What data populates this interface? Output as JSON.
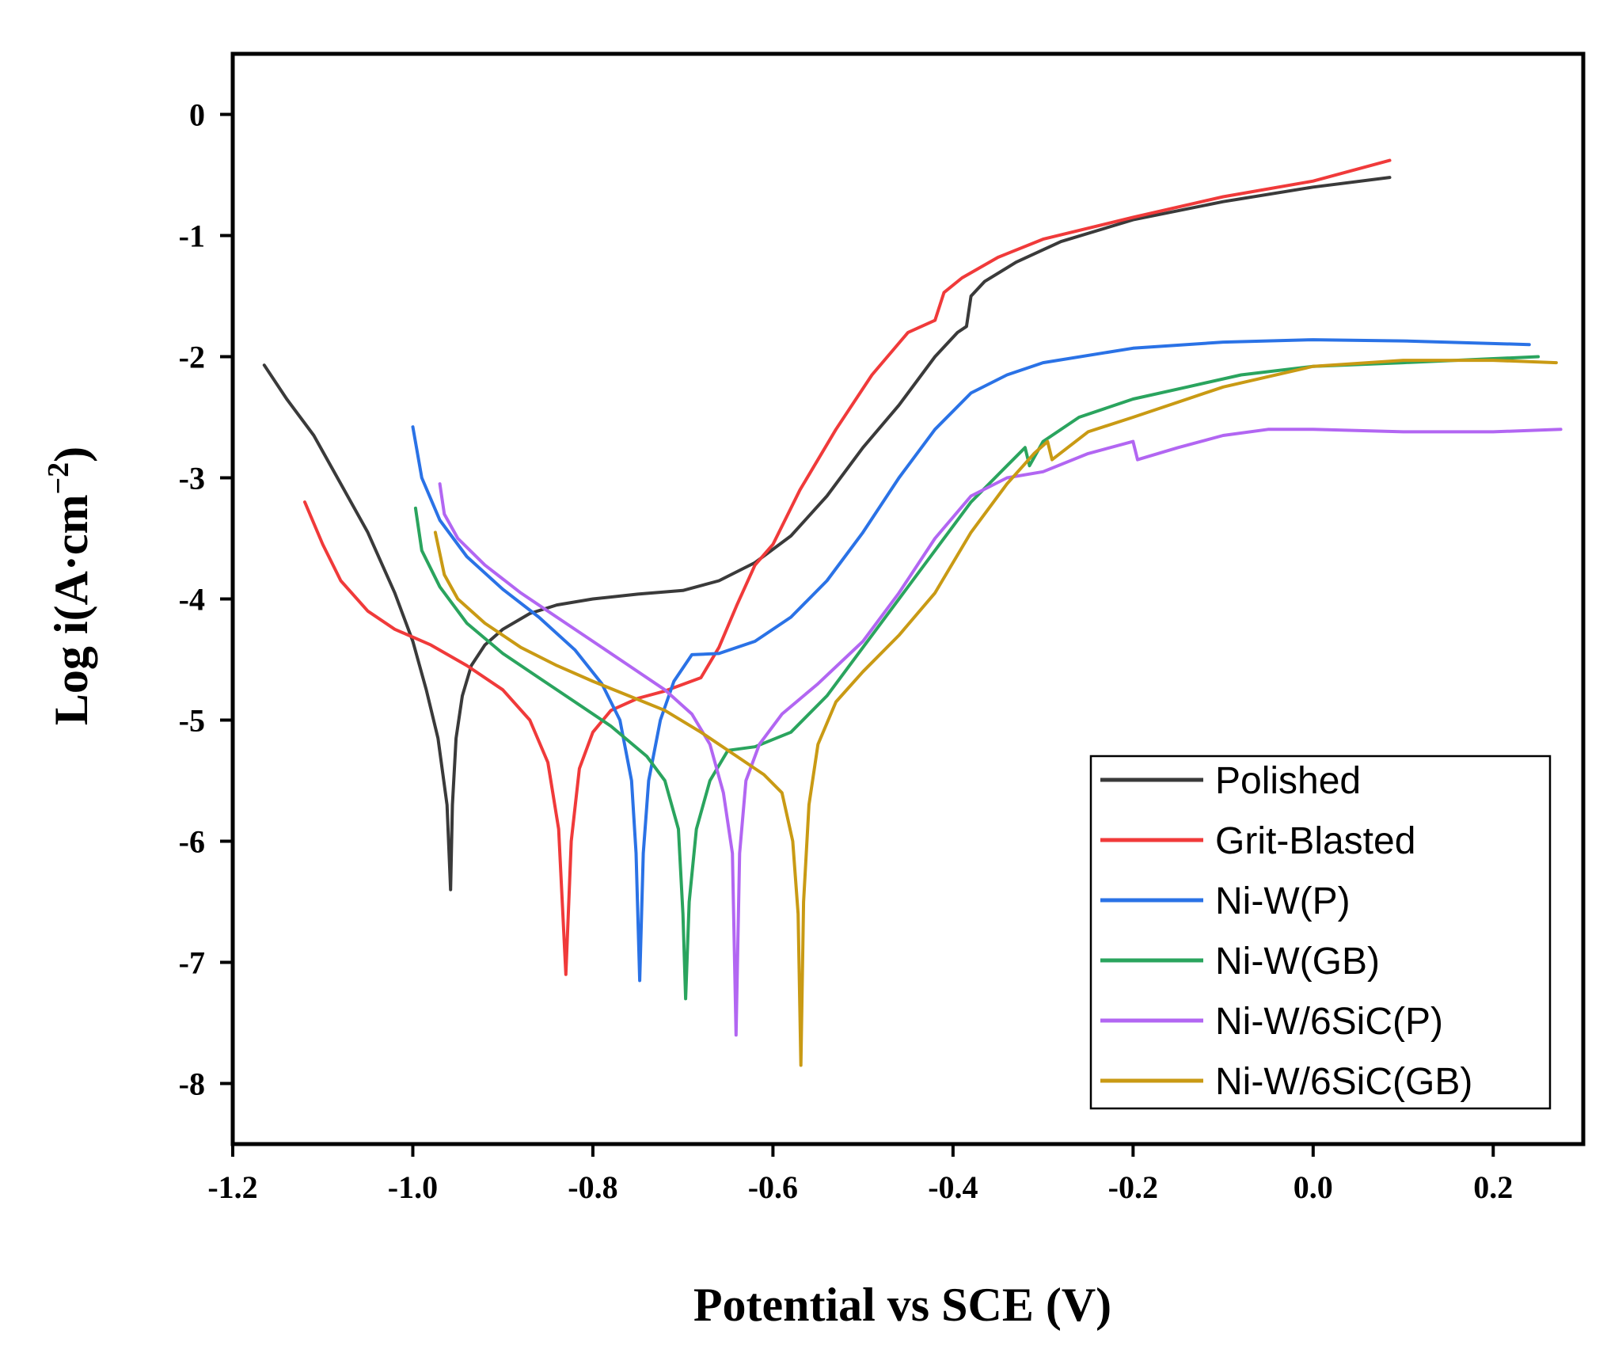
{
  "chart_data": {
    "type": "line",
    "title": "",
    "xlabel": "Potential vs SCE (V)",
    "ylabel_main": "Log i(A·cm",
    "ylabel_sup": "−2",
    "ylabel_close": ")",
    "xlim": [
      -1.2,
      0.3
    ],
    "ylim": [
      -8.5,
      0.5
    ],
    "xticks": [
      -1.2,
      -1.0,
      -0.8,
      -0.6,
      -0.4,
      -0.2,
      0.0,
      0.2
    ],
    "xtick_labels": [
      "-1.2",
      "-1.0",
      "-0.8",
      "-0.6",
      "-0.4",
      "-0.2",
      "0.0",
      "0.2"
    ],
    "yticks": [
      0,
      -1,
      -2,
      -3,
      -4,
      -5,
      -6,
      -7,
      -8
    ],
    "ytick_labels": [
      "0",
      "-1",
      "-2",
      "-3",
      "-4",
      "-5",
      "-6",
      "-7",
      "-8"
    ],
    "legend_position": "bottom-right",
    "series": [
      {
        "name": "Polished",
        "color": "#3a3a3a",
        "points": [
          [
            -1.165,
            -2.07
          ],
          [
            -1.14,
            -2.35
          ],
          [
            -1.11,
            -2.65
          ],
          [
            -1.08,
            -3.05
          ],
          [
            -1.05,
            -3.45
          ],
          [
            -1.02,
            -3.95
          ],
          [
            -1.0,
            -4.35
          ],
          [
            -0.985,
            -4.75
          ],
          [
            -0.972,
            -5.15
          ],
          [
            -0.962,
            -5.7
          ],
          [
            -0.958,
            -6.4
          ],
          [
            -0.956,
            -5.7
          ],
          [
            -0.952,
            -5.15
          ],
          [
            -0.945,
            -4.8
          ],
          [
            -0.935,
            -4.55
          ],
          [
            -0.92,
            -4.38
          ],
          [
            -0.9,
            -4.25
          ],
          [
            -0.87,
            -4.12
          ],
          [
            -0.84,
            -4.05
          ],
          [
            -0.8,
            -4.0
          ],
          [
            -0.75,
            -3.96
          ],
          [
            -0.7,
            -3.93
          ],
          [
            -0.66,
            -3.85
          ],
          [
            -0.62,
            -3.7
          ],
          [
            -0.58,
            -3.48
          ],
          [
            -0.54,
            -3.15
          ],
          [
            -0.5,
            -2.75
          ],
          [
            -0.46,
            -2.4
          ],
          [
            -0.42,
            -2.0
          ],
          [
            -0.395,
            -1.8
          ],
          [
            -0.385,
            -1.75
          ],
          [
            -0.38,
            -1.5
          ],
          [
            -0.365,
            -1.38
          ],
          [
            -0.33,
            -1.22
          ],
          [
            -0.28,
            -1.05
          ],
          [
            -0.2,
            -0.87
          ],
          [
            -0.1,
            -0.72
          ],
          [
            0.0,
            -0.6
          ],
          [
            0.085,
            -0.52
          ]
        ]
      },
      {
        "name": "Grit-Blasted",
        "color": "#f03a3a",
        "points": [
          [
            -1.12,
            -3.2
          ],
          [
            -1.1,
            -3.55
          ],
          [
            -1.08,
            -3.85
          ],
          [
            -1.05,
            -4.1
          ],
          [
            -1.02,
            -4.25
          ],
          [
            -0.98,
            -4.38
          ],
          [
            -0.94,
            -4.55
          ],
          [
            -0.9,
            -4.75
          ],
          [
            -0.87,
            -5.0
          ],
          [
            -0.85,
            -5.35
          ],
          [
            -0.838,
            -5.9
          ],
          [
            -0.83,
            -7.1
          ],
          [
            -0.824,
            -6.0
          ],
          [
            -0.815,
            -5.4
          ],
          [
            -0.8,
            -5.1
          ],
          [
            -0.78,
            -4.92
          ],
          [
            -0.75,
            -4.82
          ],
          [
            -0.72,
            -4.76
          ],
          [
            -0.68,
            -4.65
          ],
          [
            -0.66,
            -4.4
          ],
          [
            -0.64,
            -4.05
          ],
          [
            -0.62,
            -3.72
          ],
          [
            -0.6,
            -3.55
          ],
          [
            -0.57,
            -3.1
          ],
          [
            -0.53,
            -2.6
          ],
          [
            -0.49,
            -2.15
          ],
          [
            -0.45,
            -1.8
          ],
          [
            -0.42,
            -1.7
          ],
          [
            -0.41,
            -1.47
          ],
          [
            -0.39,
            -1.35
          ],
          [
            -0.35,
            -1.18
          ],
          [
            -0.3,
            -1.03
          ],
          [
            -0.2,
            -0.85
          ],
          [
            -0.1,
            -0.68
          ],
          [
            0.0,
            -0.55
          ],
          [
            0.05,
            -0.45
          ],
          [
            0.085,
            -0.38
          ]
        ]
      },
      {
        "name": "Ni-W(P)",
        "color": "#2a72e6",
        "points": [
          [
            -1.0,
            -2.58
          ],
          [
            -0.99,
            -3.0
          ],
          [
            -0.97,
            -3.35
          ],
          [
            -0.94,
            -3.65
          ],
          [
            -0.9,
            -3.92
          ],
          [
            -0.86,
            -4.15
          ],
          [
            -0.82,
            -4.42
          ],
          [
            -0.79,
            -4.7
          ],
          [
            -0.77,
            -5.0
          ],
          [
            -0.757,
            -5.5
          ],
          [
            -0.752,
            -6.1
          ],
          [
            -0.748,
            -7.15
          ],
          [
            -0.744,
            -6.1
          ],
          [
            -0.738,
            -5.5
          ],
          [
            -0.725,
            -5.0
          ],
          [
            -0.71,
            -4.68
          ],
          [
            -0.69,
            -4.46
          ],
          [
            -0.66,
            -4.45
          ],
          [
            -0.62,
            -4.35
          ],
          [
            -0.58,
            -4.15
          ],
          [
            -0.54,
            -3.85
          ],
          [
            -0.5,
            -3.45
          ],
          [
            -0.46,
            -3.0
          ],
          [
            -0.42,
            -2.6
          ],
          [
            -0.38,
            -2.3
          ],
          [
            -0.34,
            -2.15
          ],
          [
            -0.3,
            -2.05
          ],
          [
            -0.2,
            -1.93
          ],
          [
            -0.1,
            -1.88
          ],
          [
            0.0,
            -1.86
          ],
          [
            0.1,
            -1.87
          ],
          [
            0.24,
            -1.9
          ]
        ]
      },
      {
        "name": "Ni-W(GB)",
        "color": "#2aa45e",
        "points": [
          [
            -0.997,
            -3.25
          ],
          [
            -0.99,
            -3.6
          ],
          [
            -0.97,
            -3.9
          ],
          [
            -0.94,
            -4.2
          ],
          [
            -0.9,
            -4.45
          ],
          [
            -0.86,
            -4.65
          ],
          [
            -0.82,
            -4.85
          ],
          [
            -0.78,
            -5.05
          ],
          [
            -0.74,
            -5.3
          ],
          [
            -0.72,
            -5.5
          ],
          [
            -0.705,
            -5.9
          ],
          [
            -0.7,
            -6.6
          ],
          [
            -0.697,
            -7.3
          ],
          [
            -0.693,
            -6.5
          ],
          [
            -0.685,
            -5.9
          ],
          [
            -0.67,
            -5.5
          ],
          [
            -0.65,
            -5.25
          ],
          [
            -0.62,
            -5.22
          ],
          [
            -0.58,
            -5.1
          ],
          [
            -0.54,
            -4.8
          ],
          [
            -0.5,
            -4.4
          ],
          [
            -0.46,
            -4.0
          ],
          [
            -0.42,
            -3.6
          ],
          [
            -0.38,
            -3.2
          ],
          [
            -0.34,
            -2.9
          ],
          [
            -0.32,
            -2.75
          ],
          [
            -0.315,
            -2.9
          ],
          [
            -0.3,
            -2.7
          ],
          [
            -0.26,
            -2.5
          ],
          [
            -0.2,
            -2.35
          ],
          [
            -0.14,
            -2.25
          ],
          [
            -0.08,
            -2.15
          ],
          [
            0.0,
            -2.08
          ],
          [
            0.1,
            -2.05
          ],
          [
            0.25,
            -2.0
          ]
        ]
      },
      {
        "name": "Ni-W/6SiC(P)",
        "color": "#b266f2",
        "points": [
          [
            -0.97,
            -3.05
          ],
          [
            -0.965,
            -3.3
          ],
          [
            -0.95,
            -3.5
          ],
          [
            -0.92,
            -3.72
          ],
          [
            -0.88,
            -3.95
          ],
          [
            -0.84,
            -4.15
          ],
          [
            -0.8,
            -4.35
          ],
          [
            -0.76,
            -4.55
          ],
          [
            -0.72,
            -4.75
          ],
          [
            -0.69,
            -4.95
          ],
          [
            -0.67,
            -5.2
          ],
          [
            -0.655,
            -5.6
          ],
          [
            -0.645,
            -6.1
          ],
          [
            -0.641,
            -7.6
          ],
          [
            -0.637,
            -6.1
          ],
          [
            -0.63,
            -5.5
          ],
          [
            -0.615,
            -5.2
          ],
          [
            -0.59,
            -4.95
          ],
          [
            -0.55,
            -4.7
          ],
          [
            -0.5,
            -4.35
          ],
          [
            -0.46,
            -3.95
          ],
          [
            -0.42,
            -3.5
          ],
          [
            -0.38,
            -3.15
          ],
          [
            -0.34,
            -3.0
          ],
          [
            -0.3,
            -2.95
          ],
          [
            -0.25,
            -2.8
          ],
          [
            -0.2,
            -2.7
          ],
          [
            -0.195,
            -2.85
          ],
          [
            -0.15,
            -2.75
          ],
          [
            -0.1,
            -2.65
          ],
          [
            -0.05,
            -2.6
          ],
          [
            0.0,
            -2.6
          ],
          [
            0.1,
            -2.62
          ],
          [
            0.2,
            -2.62
          ],
          [
            0.275,
            -2.6
          ]
        ]
      },
      {
        "name": "Ni-W/6SiC(GB)",
        "color": "#c99a14",
        "points": [
          [
            -0.975,
            -3.45
          ],
          [
            -0.965,
            -3.8
          ],
          [
            -0.95,
            -4.0
          ],
          [
            -0.92,
            -4.2
          ],
          [
            -0.88,
            -4.4
          ],
          [
            -0.84,
            -4.55
          ],
          [
            -0.8,
            -4.68
          ],
          [
            -0.76,
            -4.8
          ],
          [
            -0.72,
            -4.92
          ],
          [
            -0.68,
            -5.1
          ],
          [
            -0.64,
            -5.3
          ],
          [
            -0.61,
            -5.45
          ],
          [
            -0.59,
            -5.6
          ],
          [
            -0.578,
            -6.0
          ],
          [
            -0.572,
            -6.6
          ],
          [
            -0.569,
            -7.85
          ],
          [
            -0.566,
            -6.5
          ],
          [
            -0.56,
            -5.7
          ],
          [
            -0.55,
            -5.2
          ],
          [
            -0.53,
            -4.85
          ],
          [
            -0.5,
            -4.6
          ],
          [
            -0.46,
            -4.3
          ],
          [
            -0.42,
            -3.95
          ],
          [
            -0.38,
            -3.45
          ],
          [
            -0.34,
            -3.05
          ],
          [
            -0.31,
            -2.8
          ],
          [
            -0.295,
            -2.7
          ],
          [
            -0.29,
            -2.85
          ],
          [
            -0.25,
            -2.62
          ],
          [
            -0.2,
            -2.5
          ],
          [
            -0.1,
            -2.25
          ],
          [
            0.0,
            -2.08
          ],
          [
            0.1,
            -2.03
          ],
          [
            0.2,
            -2.03
          ],
          [
            0.27,
            -2.05
          ]
        ]
      }
    ]
  }
}
